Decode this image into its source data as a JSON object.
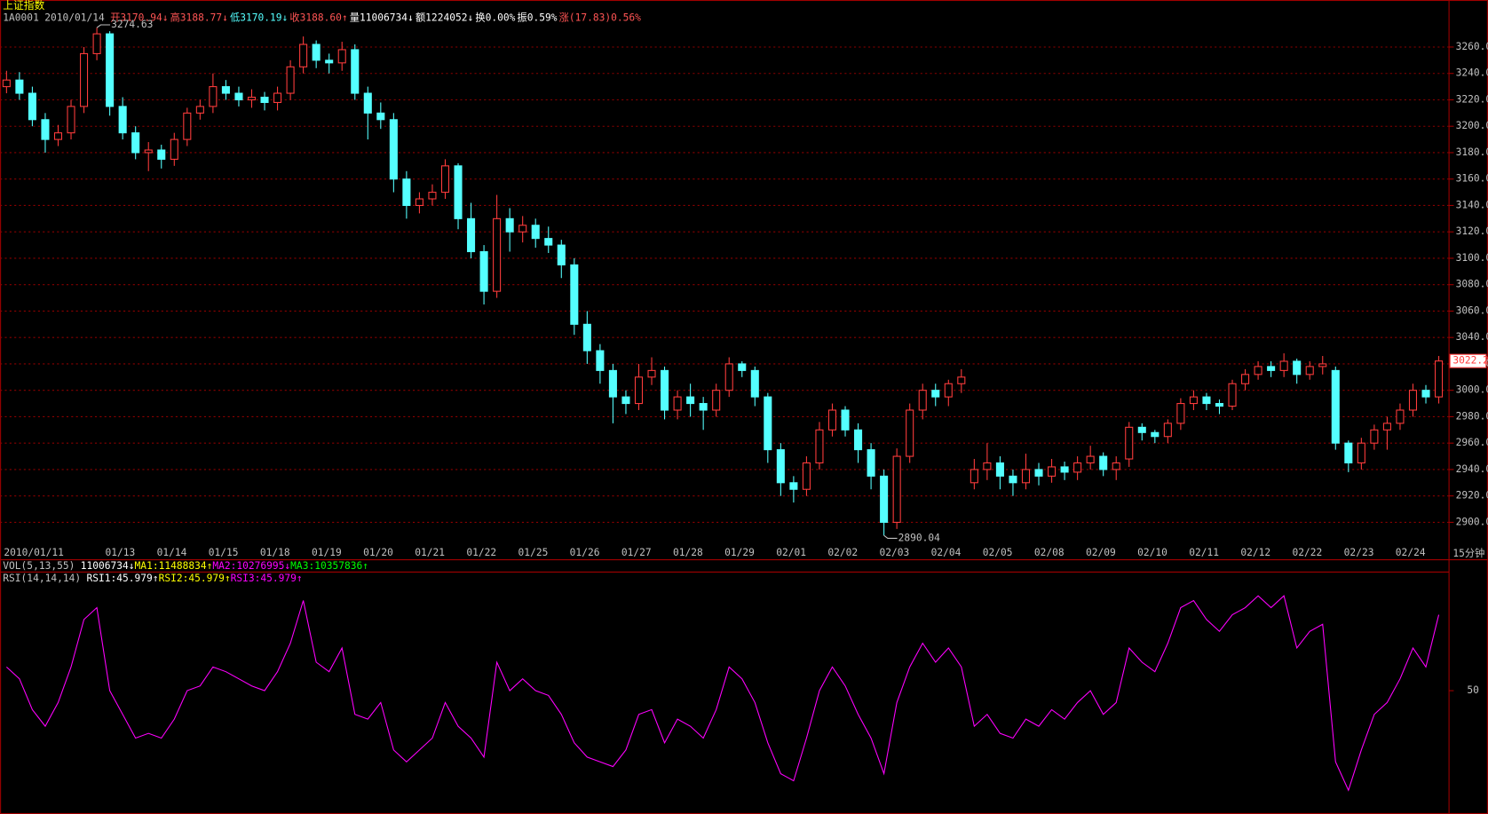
{
  "quote": {
    "title": "上证指数",
    "code": "1A0001",
    "date": "2010/01/14",
    "items": [
      {
        "text": "开3170.94↓",
        "color": "#ff5454"
      },
      {
        "text": "高3188.77↓",
        "color": "#ff5454"
      },
      {
        "text": "低3170.19↓",
        "color": "#54ffff"
      },
      {
        "text": "收3188.60↑",
        "color": "#ff5454"
      },
      {
        "text": "量11006734↓",
        "color": "#ffffff"
      },
      {
        "text": "额1224052↓",
        "color": "#ffffff"
      },
      {
        "text": "换0.00%",
        "color": "#ffffff"
      },
      {
        "text": "振0.59%",
        "color": "#ffffff"
      },
      {
        "text": "涨(17.83)0.56%",
        "color": "#ff5454"
      }
    ]
  },
  "indicators": [
    {
      "name": "VOL(5,13,55)",
      "items": [
        {
          "text": "11006734↓",
          "color": "#ffffff"
        },
        {
          "text": "MA1:11488834↑",
          "color": "#ffff00"
        },
        {
          "text": "MA2:10276995↓",
          "color": "#ff00ff"
        },
        {
          "text": "MA3:10357836↑",
          "color": "#00ff00"
        }
      ]
    },
    {
      "name": "RSI(14,14,14)",
      "items": [
        {
          "text": "RSI1:45.979↑",
          "color": "#ffffff"
        },
        {
          "text": "RSI2:45.979↑",
          "color": "#ffff00"
        },
        {
          "text": "RSI3:45.979↑",
          "color": "#ff00ff"
        }
      ]
    }
  ],
  "chart_data": [
    {
      "type": "candlestick",
      "period": "15分钟",
      "up_color": "#ff3c3c",
      "down_color": "#54ffff",
      "grid": true,
      "categories": [
        "2010/01/11",
        null,
        null,
        null,
        null,
        null,
        null,
        null,
        "01/13",
        null,
        null,
        null,
        "01/14",
        null,
        null,
        null,
        "01/15",
        null,
        null,
        null,
        "01/18",
        null,
        null,
        null,
        "01/19",
        null,
        null,
        null,
        "01/20",
        null,
        null,
        null,
        "01/21",
        null,
        null,
        null,
        "01/22",
        null,
        null,
        null,
        "01/25",
        null,
        null,
        null,
        "01/26",
        null,
        null,
        null,
        "01/27",
        null,
        null,
        null,
        "01/28",
        null,
        null,
        null,
        "01/29",
        null,
        null,
        null,
        "02/01",
        null,
        null,
        null,
        "02/02",
        null,
        null,
        null,
        "02/03",
        null,
        null,
        null,
        "02/04",
        null,
        null,
        null,
        "02/05",
        null,
        null,
        null,
        "02/08",
        null,
        null,
        null,
        "02/09",
        null,
        null,
        null,
        "02/10",
        null,
        null,
        null,
        "02/11",
        null,
        null,
        null,
        "02/12",
        null,
        null,
        null,
        "02/22",
        null,
        null,
        null,
        "02/23",
        null,
        null,
        null,
        "02/24",
        null,
        null,
        null
      ],
      "open": [
        3230,
        3235,
        3225,
        3205,
        3190,
        3195,
        3215,
        3255,
        3270,
        3215,
        3195,
        3180,
        3182,
        3175,
        3190,
        3210,
        3215,
        3230,
        3225,
        3220,
        3222,
        3218,
        3225,
        3245,
        3262,
        3250,
        3248,
        3258,
        3225,
        3210,
        3205,
        3160,
        3140,
        3145,
        3150,
        3170,
        3130,
        3105,
        3075,
        3130,
        3120,
        3125,
        3115,
        3110,
        3095,
        3050,
        3030,
        3015,
        2995,
        2990,
        3010,
        3015,
        2985,
        2995,
        2990,
        2985,
        3000,
        3020,
        3015,
        2995,
        2955,
        2930,
        2925,
        2945,
        2970,
        2985,
        2970,
        2955,
        2935,
        2900,
        2950,
        2985,
        3000,
        2995,
        3005,
        2930,
        2940,
        2945,
        2935,
        2930,
        2940,
        2935,
        2942,
        2938,
        2945,
        2950,
        2940,
        2948,
        2972,
        2968,
        2965,
        2975,
        2990,
        2995,
        2990,
        2988,
        3005,
        3012,
        3018,
        3015,
        3022,
        3012,
        3018,
        3015,
        2960,
        2945,
        2960,
        2970,
        2975,
        2985,
        3000,
        2995
      ],
      "high": [
        3242,
        3241,
        3230,
        3210,
        3201,
        3220,
        3260,
        3274.63,
        3272,
        3222,
        3200,
        3188,
        3186,
        3195,
        3214,
        3220,
        3240,
        3235,
        3230,
        3228,
        3226,
        3230,
        3250,
        3268,
        3265,
        3255,
        3264,
        3262,
        3230,
        3218,
        3210,
        3166,
        3150,
        3156,
        3175,
        3172,
        3142,
        3110,
        3148,
        3138,
        3132,
        3130,
        3124,
        3114,
        3100,
        3060,
        3035,
        3020,
        3000,
        3020,
        3025,
        3018,
        3000,
        3005,
        2995,
        3005,
        3025,
        3022,
        3018,
        2998,
        2960,
        2935,
        2950,
        2976,
        2990,
        2988,
        2975,
        2960,
        2940,
        2956,
        2990,
        3005,
        3005,
        3008,
        3016,
        2948,
        2960,
        2950,
        2940,
        2952,
        2945,
        2948,
        2946,
        2950,
        2958,
        2953,
        2950,
        2976,
        2975,
        2970,
        2978,
        2994,
        3000,
        2998,
        2993,
        3008,
        3016,
        3022,
        3022,
        3028,
        3024,
        3022,
        3026,
        3018,
        2962,
        2964,
        2974,
        2980,
        2990,
        3005,
        3004,
        3026
      ],
      "low": [
        3225,
        3220,
        3200,
        3180,
        3185,
        3190,
        3210,
        3250,
        3208,
        3190,
        3175,
        3166,
        3168,
        3170,
        3185,
        3205,
        3210,
        3220,
        3215,
        3214,
        3212,
        3212,
        3220,
        3240,
        3244,
        3240,
        3242,
        3220,
        3190,
        3198,
        3150,
        3130,
        3134,
        3140,
        3145,
        3122,
        3100,
        3065,
        3070,
        3105,
        3112,
        3108,
        3104,
        3085,
        3042,
        3020,
        3005,
        2975,
        2982,
        2985,
        3004,
        2978,
        2978,
        2980,
        2970,
        2980,
        2995,
        3010,
        2988,
        2945,
        2920,
        2915,
        2920,
        2940,
        2965,
        2965,
        2945,
        2925,
        2890.04,
        2895,
        2945,
        2978,
        2988,
        2988,
        2998,
        2925,
        2932,
        2925,
        2920,
        2925,
        2928,
        2930,
        2932,
        2932,
        2940,
        2935,
        2932,
        2942,
        2962,
        2960,
        2960,
        2970,
        2985,
        2985,
        2982,
        2985,
        3000,
        3008,
        3010,
        3010,
        3005,
        3008,
        3012,
        2955,
        2938,
        2940,
        2955,
        2955,
        2970,
        2980,
        2990,
        2990
      ],
      "close": [
        3235,
        3225,
        3205,
        3190,
        3195,
        3215,
        3255,
        3270,
        3215,
        3195,
        3180,
        3182,
        3175,
        3190,
        3210,
        3215,
        3230,
        3225,
        3220,
        3222,
        3218,
        3225,
        3245,
        3262,
        3250,
        3248,
        3258,
        3225,
        3210,
        3205,
        3160,
        3140,
        3145,
        3150,
        3170,
        3130,
        3105,
        3075,
        3130,
        3120,
        3125,
        3115,
        3110,
        3095,
        3050,
        3030,
        3015,
        2995,
        2990,
        3010,
        3015,
        2985,
        2995,
        2990,
        2985,
        3000,
        3020,
        3015,
        2995,
        2955,
        2930,
        2925,
        2945,
        2970,
        2985,
        2970,
        2955,
        2935,
        2900,
        2950,
        2985,
        3000,
        2995,
        3005,
        3010,
        2940,
        2945,
        2935,
        2930,
        2940,
        2935,
        2942,
        2938,
        2945,
        2950,
        2940,
        2945,
        2972,
        2968,
        2965,
        2975,
        2990,
        2995,
        2990,
        2988,
        3005,
        3012,
        3018,
        3015,
        3022,
        3012,
        3018,
        3020,
        2960,
        2945,
        2960,
        2970,
        2975,
        2985,
        3000,
        2995,
        3022.2
      ],
      "ylim": [
        2881,
        3287
      ],
      "yticks": [
        {
          "value": 2900,
          "label": "2900.0"
        },
        {
          "value": 2920,
          "label": "2920.0"
        },
        {
          "value": 2940,
          "label": "2940.0"
        },
        {
          "value": 2960,
          "label": "2960.0"
        },
        {
          "value": 2980,
          "label": "2980.0"
        },
        {
          "value": 3000,
          "label": "3000.0"
        },
        {
          "value": 3020,
          "label": "3020.0"
        },
        {
          "value": 3040,
          "label": "3040.0"
        },
        {
          "value": 3060,
          "label": "3060.0"
        },
        {
          "value": 3080,
          "label": "3080.0"
        },
        {
          "value": 3100,
          "label": "3100.0"
        },
        {
          "value": 3120,
          "label": "3120.0"
        },
        {
          "value": 3140,
          "label": "3140.0"
        },
        {
          "value": 3160,
          "label": "3160.0"
        },
        {
          "value": 3180,
          "label": "3180.0"
        },
        {
          "value": 3200,
          "label": "3200.0"
        },
        {
          "value": 3220,
          "label": "3220.0"
        },
        {
          "value": 3240,
          "label": "3240.0"
        },
        {
          "value": 3260,
          "label": "3260.0"
        }
      ]
    },
    {
      "type": "line",
      "color": "#ff00ff",
      "values": [
        60,
        55,
        42,
        35,
        45,
        60,
        80,
        85,
        50,
        40,
        30,
        32,
        30,
        38,
        50,
        52,
        60,
        58,
        55,
        52,
        50,
        58,
        70,
        88,
        62,
        58,
        68,
        40,
        38,
        45,
        25,
        20,
        25,
        30,
        45,
        35,
        30,
        22,
        62,
        50,
        55,
        50,
        48,
        40,
        28,
        22,
        20,
        18,
        25,
        40,
        42,
        28,
        38,
        35,
        30,
        42,
        60,
        55,
        45,
        28,
        15,
        12,
        30,
        50,
        60,
        52,
        40,
        30,
        15,
        45,
        60,
        70,
        62,
        68,
        60,
        35,
        40,
        32,
        30,
        38,
        35,
        42,
        38,
        45,
        50,
        40,
        45,
        68,
        62,
        58,
        70,
        85,
        88,
        80,
        75,
        82,
        85,
        90,
        85,
        90,
        68,
        75,
        78,
        20,
        8,
        25,
        40,
        45,
        55,
        68,
        60,
        82
      ],
      "ylim": [
        0,
        100
      ],
      "yticks": [
        50
      ]
    }
  ]
}
